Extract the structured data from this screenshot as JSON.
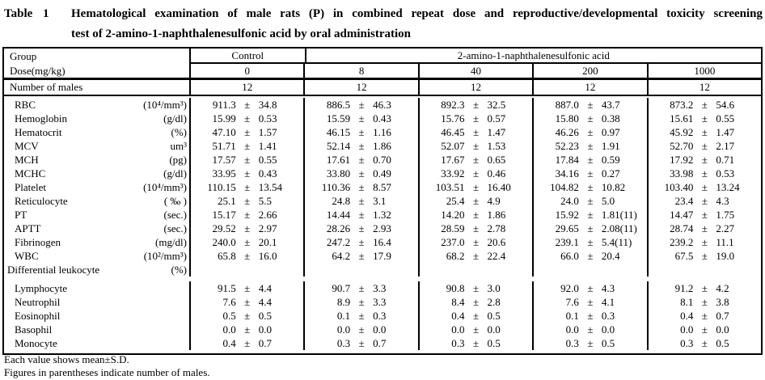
{
  "title": {
    "label": "Table 1",
    "line1": "Hematological examination of male rats (P) in combined repeat dose and reproductive/developmental toxicity screening",
    "line2": "test of 2-amino-1-naphthalenesulfonic acid by oral administration"
  },
  "table": {
    "pm": "±",
    "header": {
      "group_label": "Group",
      "dose_label": "Dose(mg/kg)",
      "control": "Control",
      "substance": "2-amino-1-naphthalenesulfonic acid",
      "doses": [
        "0",
        "8",
        "40",
        "200",
        "1000"
      ],
      "n_label": "Number of males",
      "n_values": [
        "12",
        "12",
        "12",
        "12",
        "12"
      ]
    },
    "rows": [
      {
        "name": "RBC",
        "unit": "(10⁴/mm³)",
        "cells": [
          [
            "911.3",
            "34.8"
          ],
          [
            "886.5",
            "46.3"
          ],
          [
            "892.3",
            "32.5"
          ],
          [
            "887.0",
            "43.7"
          ],
          [
            "873.2",
            "54.6"
          ]
        ]
      },
      {
        "name": "Hemoglobin",
        "unit": "(g/dl)",
        "cells": [
          [
            "15.99",
            "0.53"
          ],
          [
            "15.59",
            "0.43"
          ],
          [
            "15.76",
            "0.57"
          ],
          [
            "15.80",
            "0.38"
          ],
          [
            "15.61",
            "0.55"
          ]
        ]
      },
      {
        "name": "Hematocrit",
        "unit": "(%)",
        "cells": [
          [
            "47.10",
            "1.57"
          ],
          [
            "46.15",
            "1.16"
          ],
          [
            "46.45",
            "1.47"
          ],
          [
            "46.26",
            "0.97"
          ],
          [
            "45.92",
            "1.47"
          ]
        ]
      },
      {
        "name": "MCV",
        "unit": "um³",
        "cells": [
          [
            "51.71",
            "1.41"
          ],
          [
            "52.14",
            "1.86"
          ],
          [
            "52.07",
            "1.53"
          ],
          [
            "52.23",
            "1.91"
          ],
          [
            "52.70",
            "2.17"
          ]
        ]
      },
      {
        "name": "MCH",
        "unit": "(pg)",
        "cells": [
          [
            "17.57",
            "0.55"
          ],
          [
            "17.61",
            "0.70"
          ],
          [
            "17.67",
            "0.65"
          ],
          [
            "17.84",
            "0.59"
          ],
          [
            "17.92",
            "0.71"
          ]
        ]
      },
      {
        "name": "MCHC",
        "unit": "(g/dl)",
        "cells": [
          [
            "33.95",
            "0.43"
          ],
          [
            "33.80",
            "0.49"
          ],
          [
            "33.92",
            "0.46"
          ],
          [
            "34.16",
            "0.27"
          ],
          [
            "33.98",
            "0.53"
          ]
        ]
      },
      {
        "name": "Platelet",
        "unit": "(10⁴/mm³)",
        "cells": [
          [
            "110.15",
            "13.54"
          ],
          [
            "110.36",
            "8.57"
          ],
          [
            "103.51",
            "16.40"
          ],
          [
            "104.82",
            "10.82"
          ],
          [
            "103.40",
            "13.24"
          ]
        ]
      },
      {
        "name": "Reticulocyte",
        "unit": "( ‰ )",
        "cells": [
          [
            "25.1",
            "5.5"
          ],
          [
            "24.8",
            "3.1"
          ],
          [
            "25.4",
            "4.9"
          ],
          [
            "24.0",
            "5.0"
          ],
          [
            "23.4",
            "4.3"
          ]
        ]
      },
      {
        "name": "PT",
        "unit": "(sec.)",
        "cells": [
          [
            "15.17",
            "2.66"
          ],
          [
            "14.44",
            "1.32"
          ],
          [
            "14.20",
            "1.86"
          ],
          [
            "15.92",
            "1.81(11)"
          ],
          [
            "14.47",
            "1.75"
          ]
        ]
      },
      {
        "name": "APTT",
        "unit": "(sec.)",
        "cells": [
          [
            "29.52",
            "2.97"
          ],
          [
            "28.26",
            "2.93"
          ],
          [
            "28.59",
            "2.78"
          ],
          [
            "29.65",
            "2.08(11)"
          ],
          [
            "28.74",
            "2.27"
          ]
        ]
      },
      {
        "name": "Fibrinogen",
        "unit": "(mg/dl)",
        "cells": [
          [
            "240.0",
            "20.1"
          ],
          [
            "247.2",
            "16.4"
          ],
          [
            "237.0",
            "20.6"
          ],
          [
            "239.1",
            "5.4(11)"
          ],
          [
            "239.2",
            "11.1"
          ]
        ]
      },
      {
        "name": "WBC",
        "unit": "(10²/mm³)",
        "cells": [
          [
            "65.8",
            "16.0"
          ],
          [
            "64.2",
            "17.9"
          ],
          [
            "68.2",
            "22.4"
          ],
          [
            "66.0",
            "20.4"
          ],
          [
            "67.5",
            "19.0"
          ]
        ]
      },
      {
        "name": "Differential leukocyte",
        "unit": "(%)",
        "section": true,
        "cells": null
      },
      {
        "name": "Lymphocyte",
        "unit": "",
        "cells": [
          [
            "91.5",
            "4.4"
          ],
          [
            "90.7",
            "3.3"
          ],
          [
            "90.8",
            "3.0"
          ],
          [
            "92.0",
            "4.3"
          ],
          [
            "91.2",
            "4.2"
          ]
        ]
      },
      {
        "name": "Neutrophil",
        "unit": "",
        "cells": [
          [
            "7.6",
            "4.4"
          ],
          [
            "8.9",
            "3.3"
          ],
          [
            "8.4",
            "2.8"
          ],
          [
            "7.6",
            "4.1"
          ],
          [
            "8.1",
            "3.8"
          ]
        ]
      },
      {
        "name": "Eosinophil",
        "unit": "",
        "cells": [
          [
            "0.5",
            "0.5"
          ],
          [
            "0.1",
            "0.3"
          ],
          [
            "0.4",
            "0.5"
          ],
          [
            "0.1",
            "0.3"
          ],
          [
            "0.4",
            "0.7"
          ]
        ]
      },
      {
        "name": "Basophil",
        "unit": "",
        "cells": [
          [
            "0.0",
            "0.0"
          ],
          [
            "0.0",
            "0.0"
          ],
          [
            "0.0",
            "0.0"
          ],
          [
            "0.0",
            "0.0"
          ],
          [
            "0.0",
            "0.0"
          ]
        ]
      },
      {
        "name": "Monocyte",
        "unit": "",
        "cells": [
          [
            "0.4",
            "0.7"
          ],
          [
            "0.3",
            "0.7"
          ],
          [
            "0.3",
            "0.5"
          ],
          [
            "0.3",
            "0.5"
          ],
          [
            "0.3",
            "0.5"
          ]
        ]
      }
    ],
    "footnotes": [
      "Each value shows mean±S.D.",
      "Figures in parentheses indicate number of males."
    ]
  }
}
